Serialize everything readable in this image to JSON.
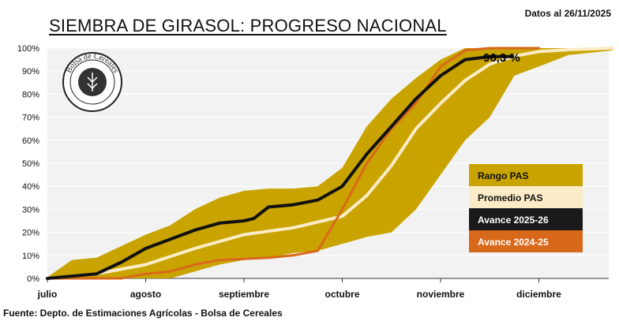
{
  "header": {
    "title": "SIEMBRA DE GIRASOL: PROGRESO NACIONAL",
    "date": "Datos al 26/11/2025"
  },
  "footer": {
    "source": "Fuente: Depto. de Estimaciones Agrícolas - Bolsa de Cereales"
  },
  "logo": {
    "text": "Bolsa de Cereales"
  },
  "colors": {
    "background": "#f2f2f2",
    "range": "#c9a400",
    "average": "#fbecc7",
    "current": "#111111",
    "previous": "#d8681a"
  },
  "chart_data": {
    "type": "area",
    "x_axis": {
      "range": [
        "julio",
        "diciembre"
      ],
      "tick_labels": [
        "julio",
        "agosto",
        "septiembre",
        "octubre",
        "noviembre",
        "diciembre"
      ]
    },
    "y_axis": {
      "range": [
        0,
        100
      ],
      "ticks": [
        0,
        10,
        20,
        30,
        40,
        50,
        60,
        70,
        80,
        90,
        100
      ],
      "tick_labels": [
        "0%",
        "10%",
        "20%",
        "30%",
        "40%",
        "50%",
        "60%",
        "70%",
        "80%",
        "90%",
        "100%"
      ]
    },
    "annotation": "96,3 %",
    "legend": [
      "Rango PAS",
      "Promedio PAS",
      "Avance 2025-26",
      "Avance 2024-25"
    ],
    "legend_position": "right",
    "x_unit": "mes (0 = julio, 1 = agosto, ..., 5 = diciembre)",
    "band": {
      "name": "Rango PAS",
      "x": [
        0,
        0.25,
        0.5,
        0.75,
        1,
        1.25,
        1.5,
        1.75,
        2,
        2.25,
        2.5,
        2.75,
        3,
        3.25,
        3.5,
        3.75,
        4,
        4.25,
        4.5,
        4.75,
        5,
        5.3,
        5.75
      ],
      "upper": [
        0.5,
        8,
        9,
        14,
        19,
        23,
        30,
        35,
        38,
        39,
        39,
        40,
        48,
        66,
        78,
        87,
        95,
        100,
        100,
        100,
        100,
        100,
        100
      ],
      "lower": [
        0,
        0,
        0,
        0,
        0,
        0,
        3,
        6,
        8,
        9,
        11,
        12,
        15,
        18,
        20,
        30,
        45,
        60,
        70,
        88,
        92,
        97,
        99
      ]
    },
    "series": [
      {
        "name": "Promedio PAS",
        "x": [
          0,
          0.5,
          1,
          1.5,
          2,
          2.5,
          3,
          3.25,
          3.5,
          3.75,
          4,
          4.25,
          4.5,
          4.75,
          5,
          5.3,
          5.75
        ],
        "values": [
          0,
          2,
          6,
          13,
          19,
          22,
          27,
          36,
          49,
          65,
          76,
          86,
          93,
          96.5,
          98.5,
          99.3,
          100
        ]
      },
      {
        "name": "Avance 2025-26",
        "x": [
          0,
          0.5,
          0.75,
          1,
          1.25,
          1.5,
          1.75,
          2,
          2.1,
          2.25,
          2.5,
          2.75,
          3,
          3.25,
          3.5,
          3.75,
          4,
          4.25,
          4.5,
          4.73
        ],
        "values": [
          0,
          2,
          7,
          13,
          17,
          21,
          24,
          25,
          26,
          31,
          32,
          34,
          40,
          54,
          66,
          78,
          88,
          95,
          96.3,
          96.3
        ]
      },
      {
        "name": "Avance 2024-25",
        "x": [
          0,
          0.75,
          1,
          1.25,
          1.5,
          1.75,
          2,
          2.25,
          2.5,
          2.75,
          3,
          3.25,
          3.5,
          3.75,
          4,
          4.25,
          4.5,
          4.75,
          5
        ],
        "values": [
          0,
          0,
          2,
          3,
          6,
          8,
          8.5,
          9,
          10,
          12,
          30,
          50,
          65,
          76,
          92,
          99,
          100,
          100,
          100
        ]
      }
    ]
  }
}
